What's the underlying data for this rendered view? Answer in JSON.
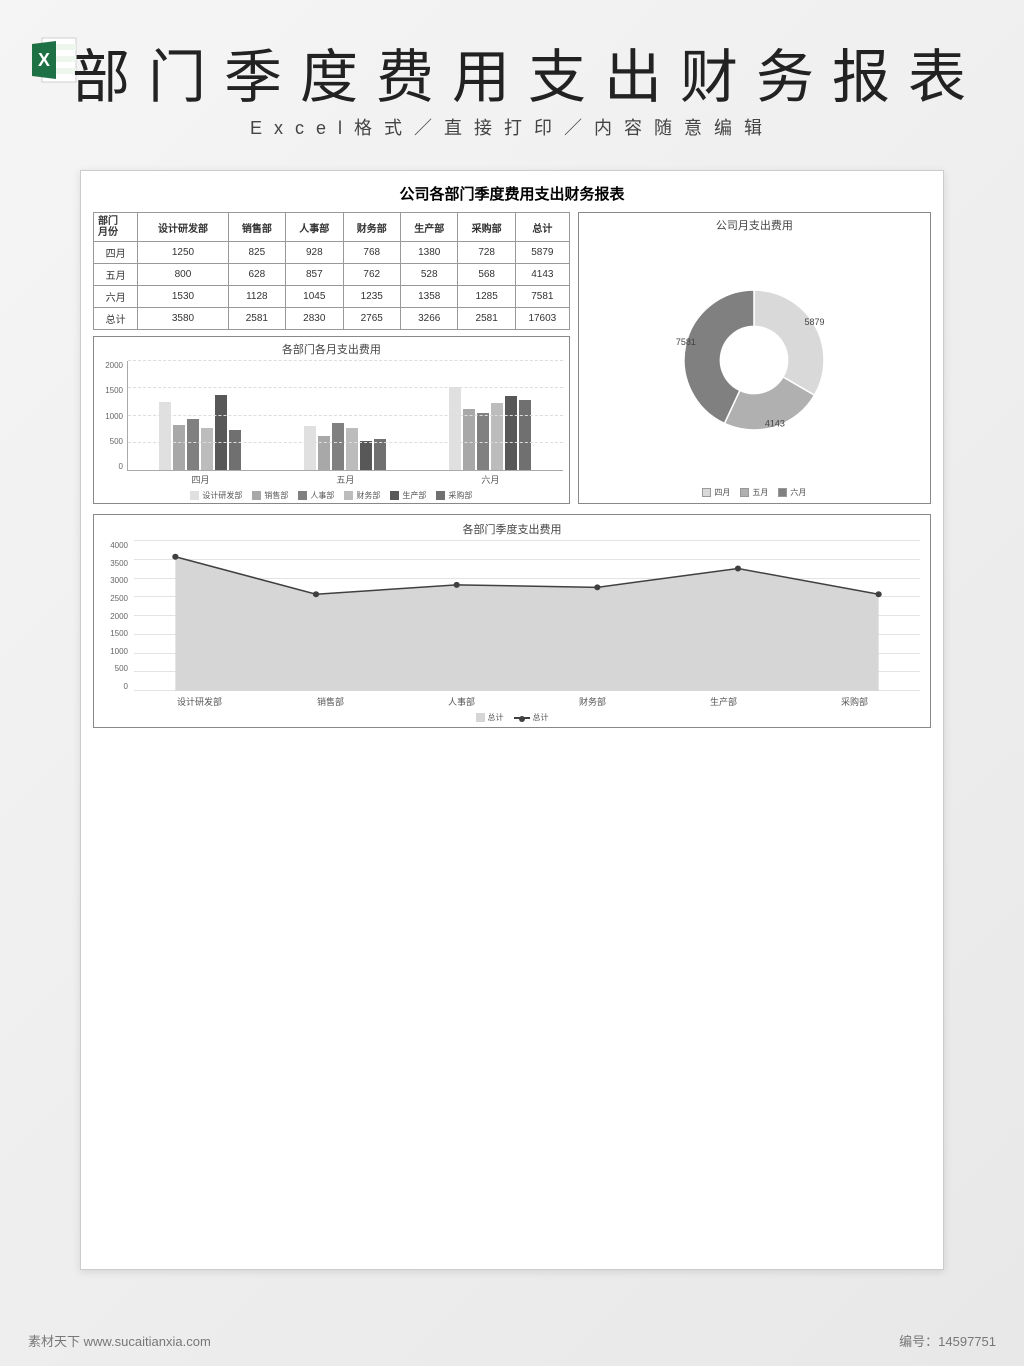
{
  "header": {
    "big_title": "部门季度费用支出财务报表",
    "sub_title": "Excel格式／直接打印／内容随意编辑"
  },
  "excel_icon": {
    "bg": "#ffffff",
    "accent": "#1e7145",
    "letter": "X"
  },
  "sheet": {
    "title": "公司各部门季度费用支出财务报表"
  },
  "table": {
    "corner_top": "部门",
    "corner_bottom": "月份",
    "columns": [
      "设计研发部",
      "销售部",
      "人事部",
      "财务部",
      "生产部",
      "采购部",
      "总计"
    ],
    "rows": [
      {
        "label": "四月",
        "cells": [
          1250,
          825,
          928,
          768,
          1380,
          728,
          5879
        ]
      },
      {
        "label": "五月",
        "cells": [
          800,
          628,
          857,
          762,
          528,
          568,
          4143
        ]
      },
      {
        "label": "六月",
        "cells": [
          1530,
          1128,
          1045,
          1235,
          1358,
          1285,
          7581
        ]
      },
      {
        "label": "总计",
        "cells": [
          3580,
          2581,
          2830,
          2765,
          3266,
          2581,
          17603
        ]
      }
    ]
  },
  "bar_chart": {
    "title": "各部门各月支出费用",
    "type": "bar",
    "ylim": [
      0,
      2000
    ],
    "ytick_step": 500,
    "yticks": [
      0,
      500,
      1000,
      1500,
      2000
    ],
    "groups": [
      "四月",
      "五月",
      "六月"
    ],
    "series": [
      "设计研发部",
      "销售部",
      "人事部",
      "财务部",
      "生产部",
      "采购部"
    ],
    "series_colors": [
      "#e0e0e0",
      "#a8a8a8",
      "#808080",
      "#bcbcbc",
      "#585858",
      "#707070"
    ],
    "values": {
      "四月": [
        1250,
        825,
        928,
        768,
        1380,
        728
      ],
      "五月": [
        800,
        628,
        857,
        762,
        528,
        568
      ],
      "六月": [
        1530,
        1128,
        1045,
        1235,
        1358,
        1285
      ]
    },
    "grid_color": "#dddddd",
    "axis_color": "#aaaaaa",
    "label_fontsize": 9
  },
  "donut_chart": {
    "title": "公司月支出费用",
    "type": "donut",
    "categories": [
      "四月",
      "五月",
      "六月"
    ],
    "values": [
      5879,
      4143,
      7581
    ],
    "colors": [
      "#d9d9d9",
      "#b0b0b0",
      "#808080"
    ],
    "hole_ratio": 0.48,
    "background": "#ffffff",
    "label_fontsize": 9,
    "legend_swatch_border": "#999999"
  },
  "area_chart": {
    "title": "各部门季度支出费用",
    "type": "area_line",
    "categories": [
      "设计研发部",
      "销售部",
      "人事部",
      "财务部",
      "生产部",
      "采购部"
    ],
    "values": [
      3580,
      2581,
      2830,
      2765,
      3266,
      2581
    ],
    "ylim": [
      0,
      4000
    ],
    "ytick_step": 500,
    "yticks": [
      0,
      500,
      1000,
      1500,
      2000,
      2500,
      3000,
      3500,
      4000
    ],
    "area_color": "#d6d6d6",
    "line_color": "#404040",
    "marker_color": "#404040",
    "marker_radius": 3,
    "grid_color": "#e3e3e3",
    "label_fontsize": 9,
    "legend": [
      "总计",
      "总计"
    ]
  },
  "footer": {
    "left": "素材天下 www.sucaitianxia.com",
    "right": "编号：14597751"
  }
}
